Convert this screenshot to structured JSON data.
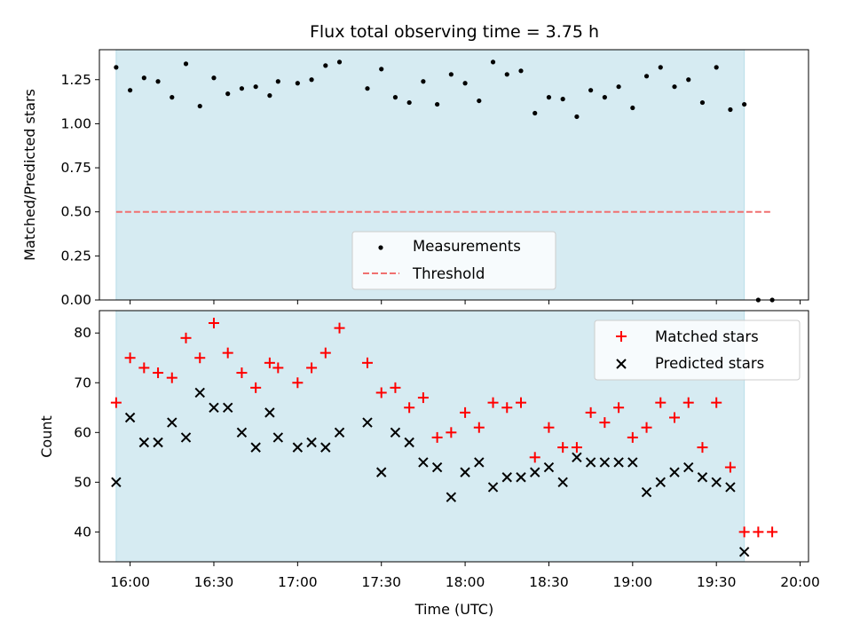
{
  "chart_data": [
    {
      "type": "scatter",
      "title": "Flux total observing time = 3.75 h",
      "ylabel": "Matched/Predicted stars",
      "xlim": [
        "15:49",
        "20:03"
      ],
      "ylim": [
        0,
        1.42
      ],
      "yticks": [
        "0.00",
        "0.25",
        "0.50",
        "0.75",
        "1.00",
        "1.25"
      ],
      "shaded_span": [
        "15:55",
        "19:40"
      ],
      "grid": false,
      "legend_position": "lower center",
      "series": [
        {
          "name": "Measurements",
          "marker": "dot",
          "color": "#000000",
          "points": [
            [
              "15:55",
              1.32
            ],
            [
              "16:00",
              1.19
            ],
            [
              "16:05",
              1.26
            ],
            [
              "16:10",
              1.24
            ],
            [
              "16:15",
              1.15
            ],
            [
              "16:20",
              1.34
            ],
            [
              "16:25",
              1.1
            ],
            [
              "16:30",
              1.26
            ],
            [
              "16:35",
              1.17
            ],
            [
              "16:40",
              1.2
            ],
            [
              "16:45",
              1.21
            ],
            [
              "16:50",
              1.16
            ],
            [
              "16:53",
              1.24
            ],
            [
              "17:00",
              1.23
            ],
            [
              "17:05",
              1.25
            ],
            [
              "17:10",
              1.33
            ],
            [
              "17:15",
              1.35
            ],
            [
              "17:25",
              1.2
            ],
            [
              "17:30",
              1.31
            ],
            [
              "17:35",
              1.15
            ],
            [
              "17:40",
              1.12
            ],
            [
              "17:45",
              1.24
            ],
            [
              "17:50",
              1.11
            ],
            [
              "17:55",
              1.28
            ],
            [
              "18:00",
              1.23
            ],
            [
              "18:05",
              1.13
            ],
            [
              "18:10",
              1.35
            ],
            [
              "18:15",
              1.28
            ],
            [
              "18:20",
              1.3
            ],
            [
              "18:25",
              1.06
            ],
            [
              "18:30",
              1.15
            ],
            [
              "18:35",
              1.14
            ],
            [
              "18:40",
              1.04
            ],
            [
              "18:45",
              1.19
            ],
            [
              "18:50",
              1.15
            ],
            [
              "18:55",
              1.21
            ],
            [
              "19:00",
              1.09
            ],
            [
              "19:05",
              1.27
            ],
            [
              "19:10",
              1.32
            ],
            [
              "19:15",
              1.21
            ],
            [
              "19:20",
              1.25
            ],
            [
              "19:25",
              1.12
            ],
            [
              "19:30",
              1.32
            ],
            [
              "19:35",
              1.08
            ],
            [
              "19:40",
              1.11
            ],
            [
              "19:45",
              0.0
            ],
            [
              "19:50",
              0.0
            ]
          ]
        },
        {
          "name": "Threshold",
          "type": "line",
          "style": "dashed",
          "color": "#f07070",
          "points": [
            [
              "15:55",
              0.5
            ],
            [
              "19:50",
              0.5
            ]
          ]
        }
      ]
    },
    {
      "type": "scatter",
      "xlabel": "Time (UTC)",
      "ylabel": "Count",
      "xlim": [
        "15:49",
        "20:03"
      ],
      "ylim": [
        34,
        84.5
      ],
      "xticks": [
        "16:00",
        "16:30",
        "17:00",
        "17:30",
        "18:00",
        "18:30",
        "19:00",
        "19:30",
        "20:00"
      ],
      "yticks": [
        "40",
        "50",
        "60",
        "70",
        "80"
      ],
      "shaded_span": [
        "15:55",
        "19:40"
      ],
      "grid": false,
      "legend_position": "upper right",
      "series": [
        {
          "name": "Matched stars",
          "marker": "plus",
          "color": "#ff0000",
          "points": [
            [
              "15:55",
              66
            ],
            [
              "16:00",
              75
            ],
            [
              "16:05",
              73
            ],
            [
              "16:10",
              72
            ],
            [
              "16:15",
              71
            ],
            [
              "16:20",
              79
            ],
            [
              "16:25",
              75
            ],
            [
              "16:30",
              82
            ],
            [
              "16:35",
              76
            ],
            [
              "16:40",
              72
            ],
            [
              "16:45",
              69
            ],
            [
              "16:50",
              74
            ],
            [
              "16:53",
              73
            ],
            [
              "17:00",
              70
            ],
            [
              "17:05",
              73
            ],
            [
              "17:10",
              76
            ],
            [
              "17:15",
              81
            ],
            [
              "17:25",
              74
            ],
            [
              "17:30",
              68
            ],
            [
              "17:35",
              69
            ],
            [
              "17:40",
              65
            ],
            [
              "17:45",
              67
            ],
            [
              "17:50",
              59
            ],
            [
              "17:55",
              60
            ],
            [
              "18:00",
              64
            ],
            [
              "18:05",
              61
            ],
            [
              "18:10",
              66
            ],
            [
              "18:15",
              65
            ],
            [
              "18:20",
              66
            ],
            [
              "18:25",
              55
            ],
            [
              "18:30",
              61
            ],
            [
              "18:35",
              57
            ],
            [
              "18:40",
              57
            ],
            [
              "18:45",
              64
            ],
            [
              "18:50",
              62
            ],
            [
              "18:55",
              65
            ],
            [
              "19:00",
              59
            ],
            [
              "19:05",
              61
            ],
            [
              "19:10",
              66
            ],
            [
              "19:15",
              63
            ],
            [
              "19:20",
              66
            ],
            [
              "19:25",
              57
            ],
            [
              "19:30",
              66
            ],
            [
              "19:35",
              53
            ],
            [
              "19:40",
              40
            ],
            [
              "19:45",
              40
            ],
            [
              "19:50",
              40
            ]
          ]
        },
        {
          "name": "Predicted stars",
          "marker": "x",
          "color": "#000000",
          "points": [
            [
              "15:55",
              50
            ],
            [
              "16:00",
              63
            ],
            [
              "16:05",
              58
            ],
            [
              "16:10",
              58
            ],
            [
              "16:15",
              62
            ],
            [
              "16:20",
              59
            ],
            [
              "16:25",
              68
            ],
            [
              "16:30",
              65
            ],
            [
              "16:35",
              65
            ],
            [
              "16:40",
              60
            ],
            [
              "16:45",
              57
            ],
            [
              "16:50",
              64
            ],
            [
              "16:53",
              59
            ],
            [
              "17:00",
              57
            ],
            [
              "17:05",
              58
            ],
            [
              "17:10",
              57
            ],
            [
              "17:15",
              60
            ],
            [
              "17:25",
              62
            ],
            [
              "17:30",
              52
            ],
            [
              "17:35",
              60
            ],
            [
              "17:40",
              58
            ],
            [
              "17:45",
              54
            ],
            [
              "17:50",
              53
            ],
            [
              "17:55",
              47
            ],
            [
              "18:00",
              52
            ],
            [
              "18:05",
              54
            ],
            [
              "18:10",
              49
            ],
            [
              "18:15",
              51
            ],
            [
              "18:20",
              51
            ],
            [
              "18:25",
              52
            ],
            [
              "18:30",
              53
            ],
            [
              "18:35",
              50
            ],
            [
              "18:40",
              55
            ],
            [
              "18:45",
              54
            ],
            [
              "18:50",
              54
            ],
            [
              "18:55",
              54
            ],
            [
              "19:00",
              54
            ],
            [
              "19:05",
              48
            ],
            [
              "19:10",
              50
            ],
            [
              "19:15",
              52
            ],
            [
              "19:20",
              53
            ],
            [
              "19:25",
              51
            ],
            [
              "19:30",
              50
            ],
            [
              "19:35",
              49
            ],
            [
              "19:40",
              36
            ]
          ]
        }
      ]
    }
  ],
  "colors": {
    "span_fill": "#add8e6",
    "matched": "#ff0000",
    "predicted": "#000000",
    "threshold": "#f07070"
  }
}
